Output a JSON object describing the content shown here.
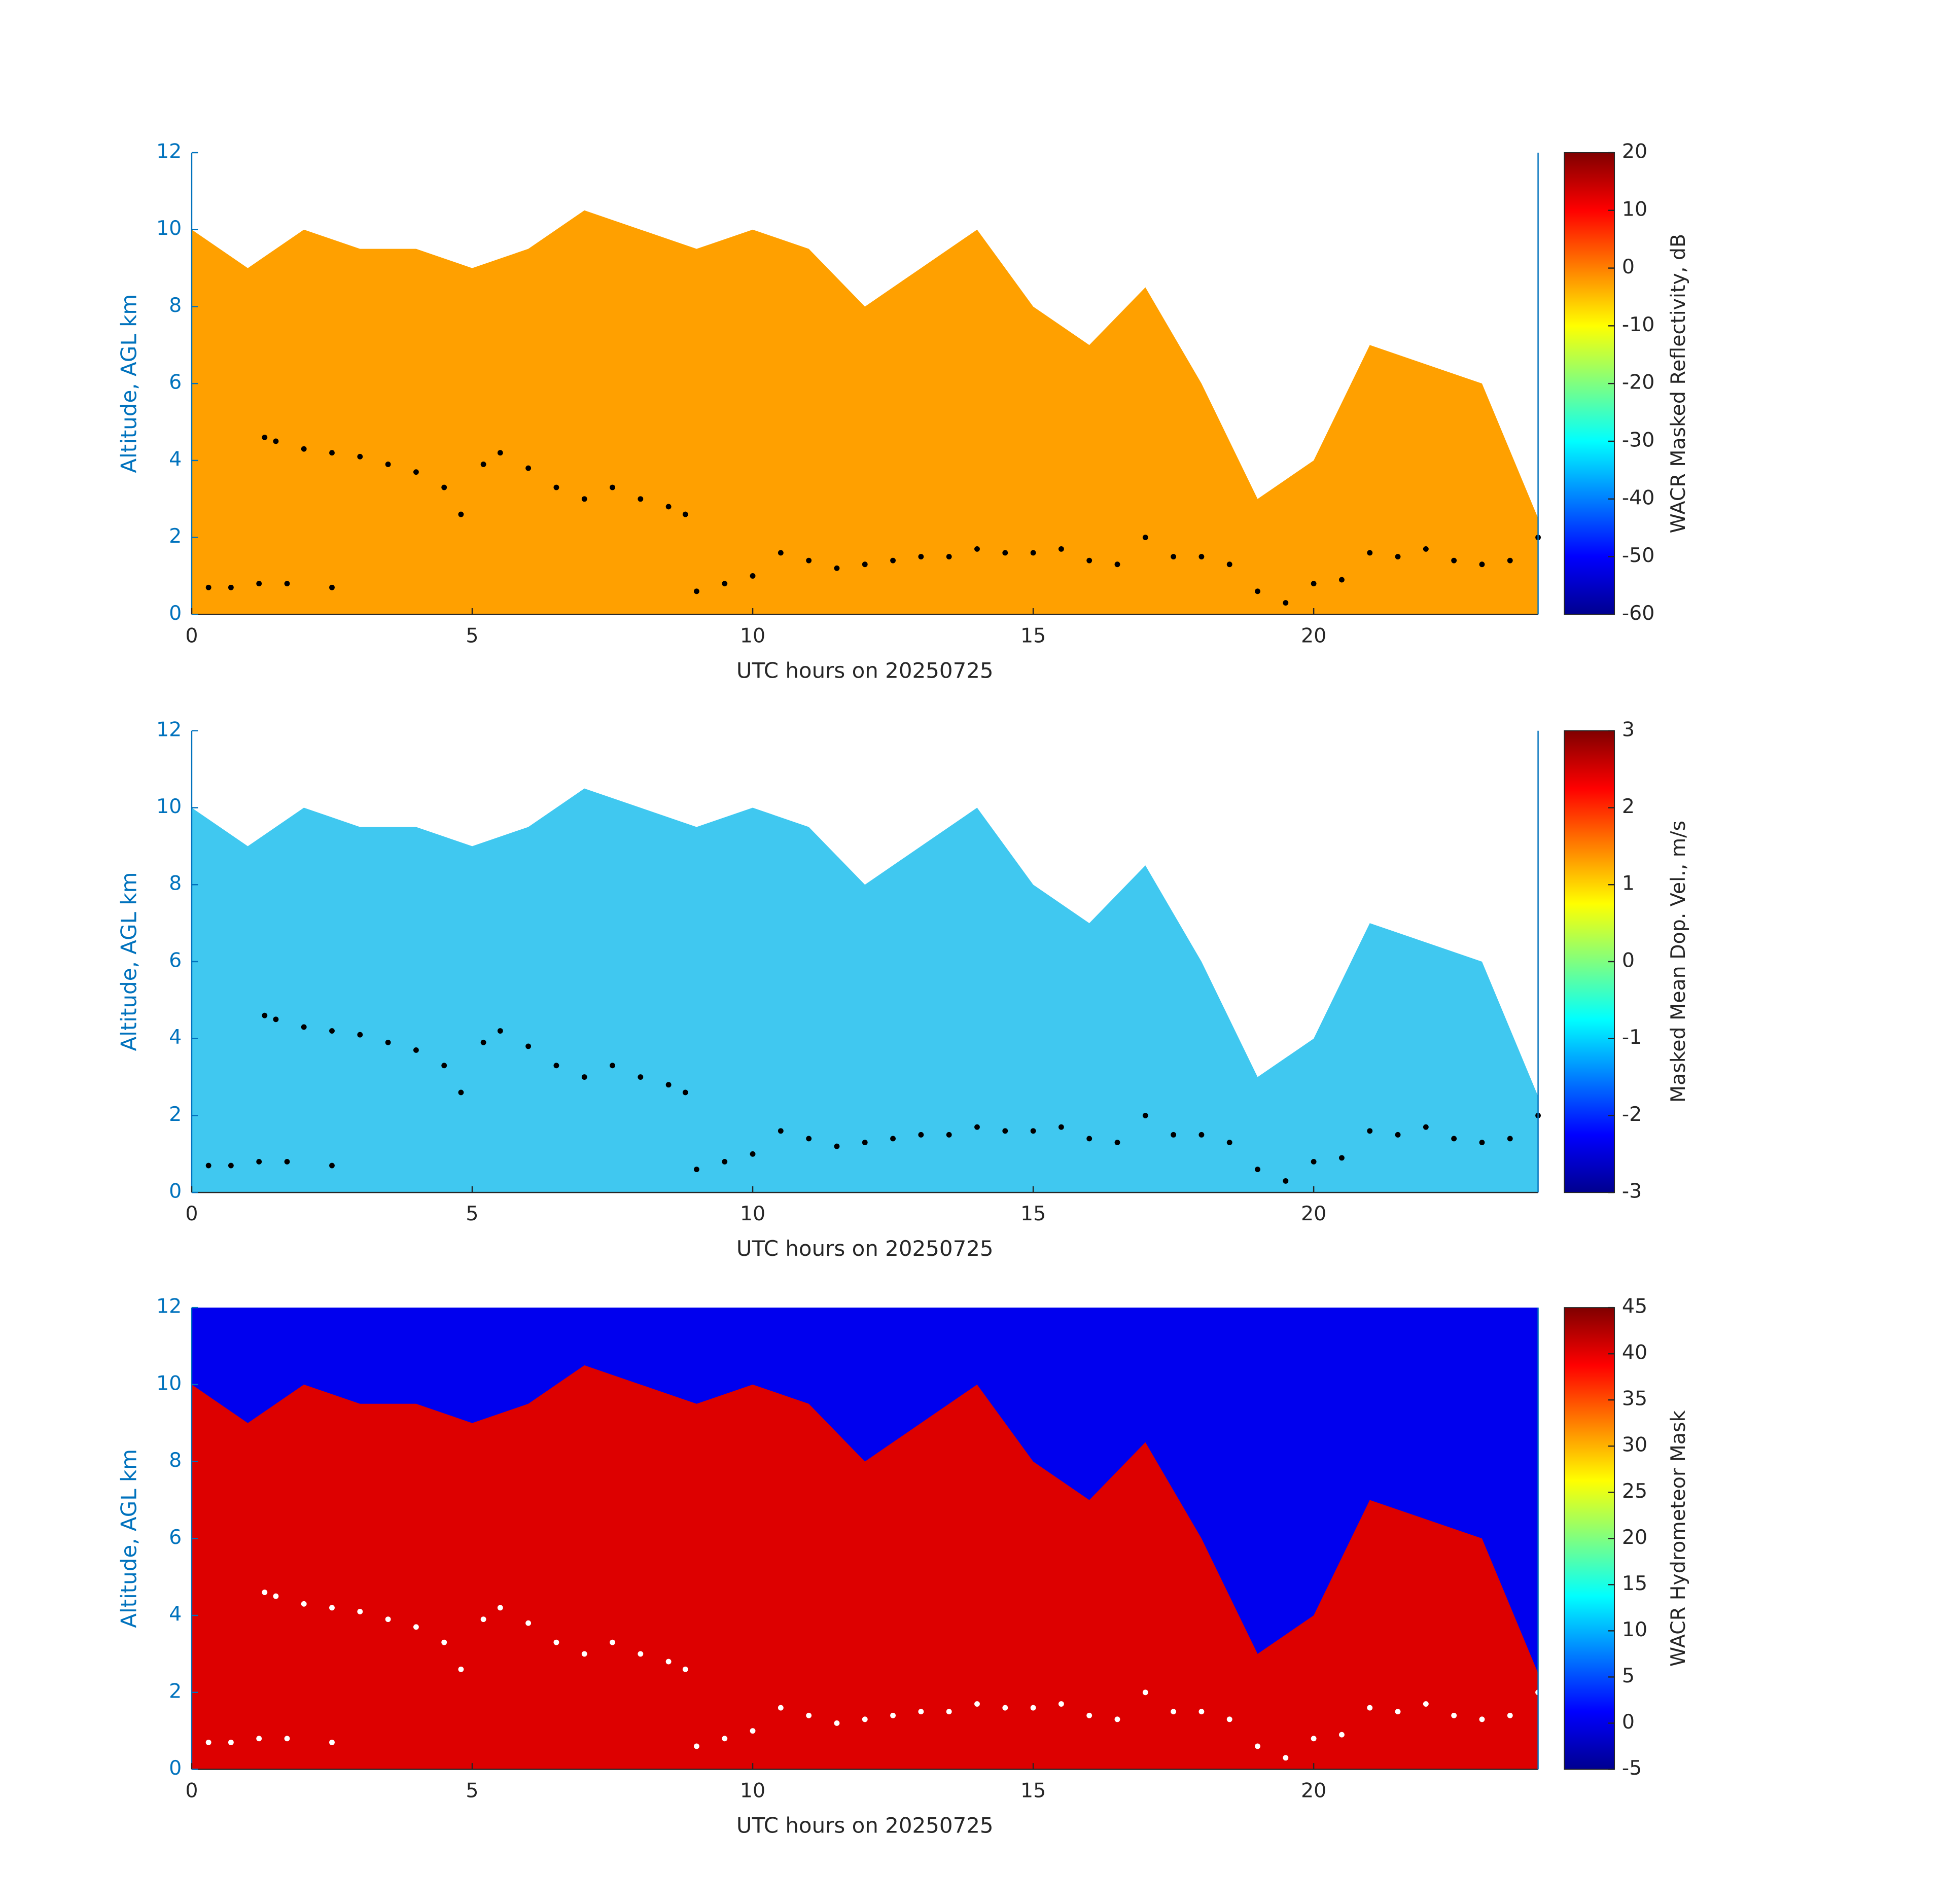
{
  "chart_data": [
    {
      "type": "area",
      "xlabel": "UTC hours on 20250725",
      "ylabel": "Altitude, AGL km",
      "xlim": [
        0,
        24
      ],
      "ylim": [
        0,
        12
      ],
      "xticks": [
        0,
        5,
        10,
        15,
        20
      ],
      "yticks": [
        0,
        2,
        4,
        6,
        8,
        10,
        12
      ],
      "x": [
        0,
        1,
        2,
        3,
        4,
        5,
        6,
        7,
        8,
        9,
        10,
        11,
        12,
        13,
        14,
        15,
        16,
        17,
        18,
        19,
        20,
        21,
        22,
        23,
        24
      ],
      "values": [
        10,
        9,
        10,
        9.5,
        9.5,
        9,
        9.5,
        10.5,
        10,
        9.5,
        10,
        9.5,
        8,
        9,
        10,
        8,
        7,
        8.5,
        6,
        3,
        4,
        7,
        6.5,
        6,
        2.5
      ],
      "color": "#ffa000",
      "colorbar": {
        "label": "WACR Masked Reflectivity, dB",
        "lim": [
          -60,
          20
        ],
        "ticks": [
          -60,
          -50,
          -40,
          -30,
          -20,
          -10,
          0,
          10,
          20
        ]
      },
      "points": {
        "color": "#000000",
        "x": [
          0.3,
          0.7,
          1.2,
          1.7,
          2.5,
          1.3,
          1.5,
          2,
          2.5,
          3,
          3.5,
          4,
          4.5,
          4.8,
          5.2,
          5.5,
          6,
          6.5,
          7,
          7.5,
          8,
          8.5,
          8.8,
          9,
          9.5,
          10,
          10.5,
          11,
          11.5,
          12,
          12.5,
          13,
          13.5,
          14,
          14.5,
          15,
          15.5,
          16,
          16.5,
          17,
          17.5,
          18,
          18.5,
          19,
          19.5,
          20,
          20.5,
          21,
          21.5,
          22,
          22.5,
          23,
          23.5,
          24
        ],
        "values": [
          0.7,
          0.7,
          0.8,
          0.8,
          0.7,
          4.6,
          4.5,
          4.3,
          4.2,
          4.1,
          3.9,
          3.7,
          3.3,
          2.6,
          3.9,
          4.2,
          3.8,
          3.3,
          3.0,
          3.3,
          3.0,
          2.8,
          2.6,
          0.6,
          0.8,
          1.0,
          1.6,
          1.4,
          1.2,
          1.3,
          1.4,
          1.5,
          1.5,
          1.7,
          1.6,
          1.6,
          1.7,
          1.4,
          1.3,
          2.0,
          1.5,
          1.5,
          1.3,
          0.6,
          0.3,
          0.8,
          0.9,
          1.6,
          1.5,
          1.7,
          1.4,
          1.3,
          1.4,
          2.0
        ]
      }
    },
    {
      "type": "area",
      "xlabel": "UTC hours on 20250725",
      "ylabel": "Altitude, AGL km",
      "xlim": [
        0,
        24
      ],
      "ylim": [
        0,
        12
      ],
      "xticks": [
        0,
        5,
        10,
        15,
        20
      ],
      "yticks": [
        0,
        2,
        4,
        6,
        8,
        10,
        12
      ],
      "x": [
        0,
        1,
        2,
        3,
        4,
        5,
        6,
        7,
        8,
        9,
        10,
        11,
        12,
        13,
        14,
        15,
        16,
        17,
        18,
        19,
        20,
        21,
        22,
        23,
        24
      ],
      "values": [
        10,
        9,
        10,
        9.5,
        9.5,
        9,
        9.5,
        10.5,
        10,
        9.5,
        10,
        9.5,
        8,
        9,
        10,
        8,
        7,
        8.5,
        6,
        3,
        4,
        7,
        6.5,
        6,
        2.5
      ],
      "color": "#40c8f0",
      "colorbar": {
        "label": "Masked Mean Dop. Vel., m/s",
        "lim": [
          -3,
          3
        ],
        "ticks": [
          -3,
          -2,
          -1,
          0,
          1,
          2,
          3
        ]
      },
      "points": {
        "color": "#000000",
        "x": [
          0.3,
          0.7,
          1.2,
          1.7,
          2.5,
          1.3,
          1.5,
          2,
          2.5,
          3,
          3.5,
          4,
          4.5,
          4.8,
          5.2,
          5.5,
          6,
          6.5,
          7,
          7.5,
          8,
          8.5,
          8.8,
          9,
          9.5,
          10,
          10.5,
          11,
          11.5,
          12,
          12.5,
          13,
          13.5,
          14,
          14.5,
          15,
          15.5,
          16,
          16.5,
          17,
          17.5,
          18,
          18.5,
          19,
          19.5,
          20,
          20.5,
          21,
          21.5,
          22,
          22.5,
          23,
          23.5,
          24
        ],
        "values": [
          0.7,
          0.7,
          0.8,
          0.8,
          0.7,
          4.6,
          4.5,
          4.3,
          4.2,
          4.1,
          3.9,
          3.7,
          3.3,
          2.6,
          3.9,
          4.2,
          3.8,
          3.3,
          3.0,
          3.3,
          3.0,
          2.8,
          2.6,
          0.6,
          0.8,
          1.0,
          1.6,
          1.4,
          1.2,
          1.3,
          1.4,
          1.5,
          1.5,
          1.7,
          1.6,
          1.6,
          1.7,
          1.4,
          1.3,
          2.0,
          1.5,
          1.5,
          1.3,
          0.6,
          0.3,
          0.8,
          0.9,
          1.6,
          1.5,
          1.7,
          1.4,
          1.3,
          1.4,
          2.0
        ]
      }
    },
    {
      "type": "area",
      "xlabel": "UTC hours on 20250725",
      "ylabel": "Altitude, AGL km",
      "xlim": [
        0,
        24
      ],
      "ylim": [
        0,
        12
      ],
      "xticks": [
        0,
        5,
        10,
        15,
        20
      ],
      "yticks": [
        0,
        2,
        4,
        6,
        8,
        10,
        12
      ],
      "x": [
        0,
        1,
        2,
        3,
        4,
        5,
        6,
        7,
        8,
        9,
        10,
        11,
        12,
        13,
        14,
        15,
        16,
        17,
        18,
        19,
        20,
        21,
        22,
        23,
        24
      ],
      "values": [
        10,
        9,
        10,
        9.5,
        9.5,
        9,
        9.5,
        10.5,
        10,
        9.5,
        10,
        9.5,
        8,
        9,
        10,
        8,
        7,
        8.5,
        6,
        3,
        4,
        7,
        6.5,
        6,
        2.5
      ],
      "color": "#dd0000",
      "background": "#0000ee",
      "colorbar": {
        "label": "WACR Hydrometeor Mask",
        "lim": [
          -5,
          45
        ],
        "ticks": [
          -5,
          0,
          5,
          10,
          15,
          20,
          25,
          30,
          35,
          40,
          45
        ]
      },
      "points": {
        "color": "#ffffff",
        "x": [
          0.3,
          0.7,
          1.2,
          1.7,
          2.5,
          1.3,
          1.5,
          2,
          2.5,
          3,
          3.5,
          4,
          4.5,
          4.8,
          5.2,
          5.5,
          6,
          6.5,
          7,
          7.5,
          8,
          8.5,
          8.8,
          9,
          9.5,
          10,
          10.5,
          11,
          11.5,
          12,
          12.5,
          13,
          13.5,
          14,
          14.5,
          15,
          15.5,
          16,
          16.5,
          17,
          17.5,
          18,
          18.5,
          19,
          19.5,
          20,
          20.5,
          21,
          21.5,
          22,
          22.5,
          23,
          23.5,
          24
        ],
        "values": [
          0.7,
          0.7,
          0.8,
          0.8,
          0.7,
          4.6,
          4.5,
          4.3,
          4.2,
          4.1,
          3.9,
          3.7,
          3.3,
          2.6,
          3.9,
          4.2,
          3.8,
          3.3,
          3.0,
          3.3,
          3.0,
          2.8,
          2.6,
          0.6,
          0.8,
          1.0,
          1.6,
          1.4,
          1.2,
          1.3,
          1.4,
          1.5,
          1.5,
          1.7,
          1.6,
          1.6,
          1.7,
          1.4,
          1.3,
          2.0,
          1.5,
          1.5,
          1.3,
          0.6,
          0.3,
          0.8,
          0.9,
          1.6,
          1.5,
          1.7,
          1.4,
          1.3,
          1.4,
          2.0
        ]
      }
    }
  ]
}
